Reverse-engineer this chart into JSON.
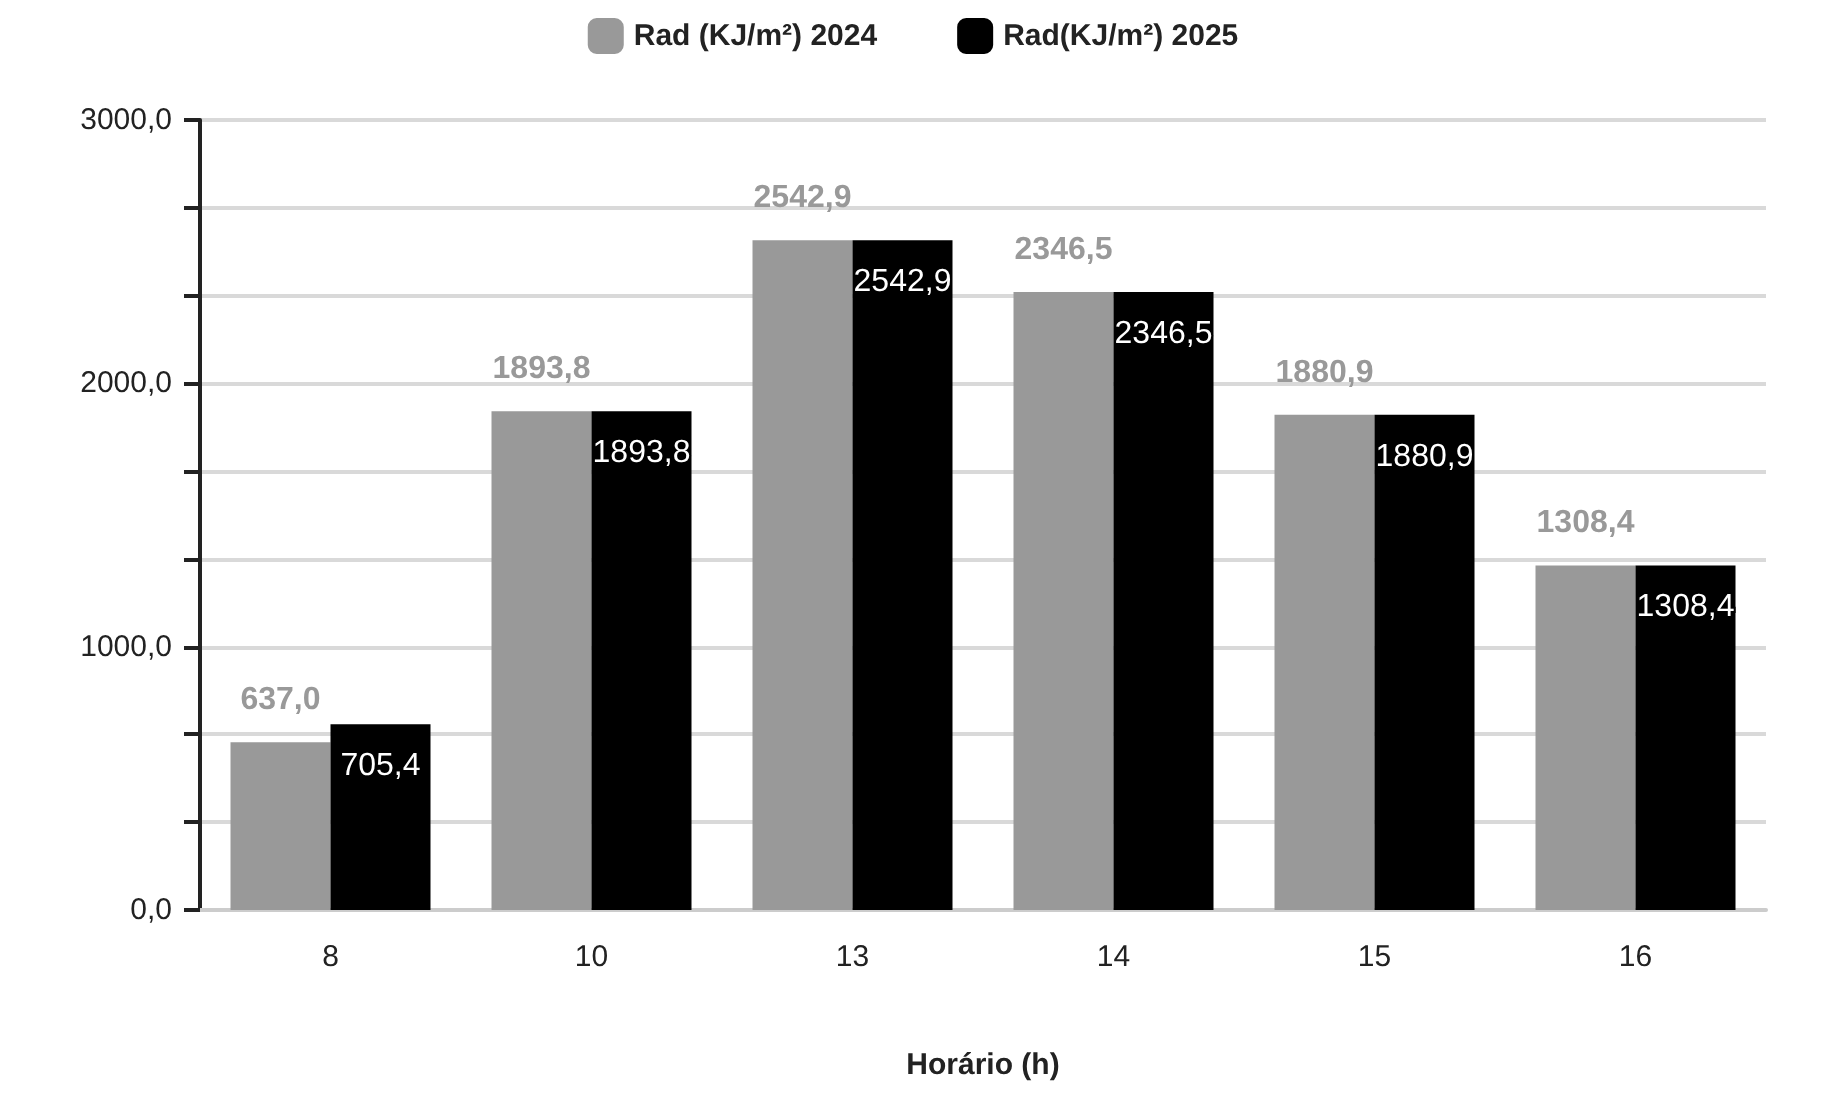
{
  "chart_data": {
    "type": "bar",
    "xlabel": "Horário (h)",
    "categories": [
      "8",
      "10",
      "13",
      "14",
      "15",
      "16"
    ],
    "series": [
      {
        "name": "Rad (KJ/m²) 2024",
        "color": "#999999",
        "values": [
          637.0,
          1893.8,
          2542.9,
          2346.5,
          1880.9,
          1308.4
        ],
        "value_labels": [
          "637,0",
          "1893,8",
          "2542,9",
          "2346,5",
          "1880,9",
          "1308,4"
        ]
      },
      {
        "name": "Rad(KJ/m²) 2025",
        "color": "#000000",
        "values": [
          705.4,
          1893.8,
          2542.9,
          2346.5,
          1880.9,
          1308.4
        ],
        "value_labels": [
          "705,4",
          "1893,8",
          "2542,9",
          "2346,5",
          "1880,9",
          "1308,4"
        ]
      }
    ],
    "ylim": [
      0,
      3000
    ],
    "yticks": [
      {
        "value": 0,
        "label": "0,0"
      },
      {
        "value": 333.3,
        "label": null
      },
      {
        "value": 666.7,
        "label": null
      },
      {
        "value": 1000,
        "label": "1000,0"
      },
      {
        "value": 1333.3,
        "label": null
      },
      {
        "value": 1666.7,
        "label": null
      },
      {
        "value": 2000,
        "label": "2000,0"
      },
      {
        "value": 2333.3,
        "label": null
      },
      {
        "value": 2666.7,
        "label": null
      },
      {
        "value": 3000,
        "label": "3000,0"
      }
    ],
    "grid": "y",
    "legend": "top"
  }
}
